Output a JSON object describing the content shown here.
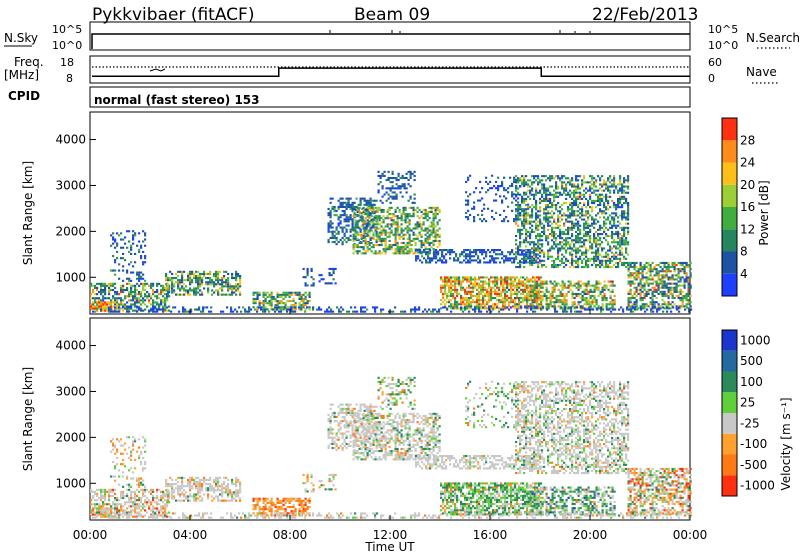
{
  "header": {
    "station": "Pykkvibaer (fitACF)",
    "beam": "Beam 09",
    "date": "22/Feb/2013"
  },
  "nsky_panel": {
    "left_label": "N.Sky",
    "left_ticks": [
      "10^5",
      "10^0"
    ],
    "right_ticks": [
      "10^5",
      "10^0"
    ],
    "right_label": "N.Search"
  },
  "freq_panel": {
    "left_label_1": "Freq.",
    "left_label_2": "[MHz]",
    "left_ticks": [
      "18",
      "8"
    ],
    "right_ticks": [
      "60",
      "0"
    ],
    "right_label": "Nave",
    "step_times_hours": [
      7.55,
      18.05
    ],
    "freq_levels": [
      10.5,
      13.5,
      10.5
    ]
  },
  "cpid_panel": {
    "label": "CPID",
    "text": "normal (fast stereo) 153"
  },
  "chart_data": [
    {
      "type": "heatmap",
      "title": "",
      "ylabel": "Slant Range [km]",
      "xlabel": "",
      "xlim": [
        0,
        24
      ],
      "ylim": [
        200,
        4600
      ],
      "yticks": [
        "1000",
        "2000",
        "3000",
        "4000"
      ],
      "colorbar": {
        "label": "Power [dB]",
        "range": [
          0,
          32
        ],
        "ticks": [
          "4",
          "8",
          "12",
          "16",
          "20",
          "24",
          "28"
        ],
        "colors": [
          "#1f3fff",
          "#1d53a5",
          "#25855f",
          "#3fae3f",
          "#9ccf35",
          "#ffbf1a",
          "#ff8c1a",
          "#ff2f12"
        ]
      }
    },
    {
      "type": "heatmap",
      "title": "",
      "ylabel": "Slant Range [km]",
      "xlabel": "Time UT",
      "xlim": [
        0,
        24
      ],
      "ylim": [
        200,
        4600
      ],
      "xticks": [
        "00:00",
        "04:00",
        "08:00",
        "12:00",
        "16:00",
        "20:00",
        "00:00"
      ],
      "yticks": [
        "1000",
        "2000",
        "3000",
        "4000"
      ],
      "colorbar": {
        "label": "Velocity [m s⁻¹]",
        "ticks": [
          "1000",
          "500",
          "100",
          "25",
          "-25",
          "-100",
          "-500",
          "-1000"
        ],
        "colors": [
          "#1b35cf",
          "#246aa0",
          "#2a8a5a",
          "#5fcf3a",
          "#c8c8c8",
          "#ffa030",
          "#ff7a14",
          "#ff3010"
        ]
      }
    }
  ]
}
